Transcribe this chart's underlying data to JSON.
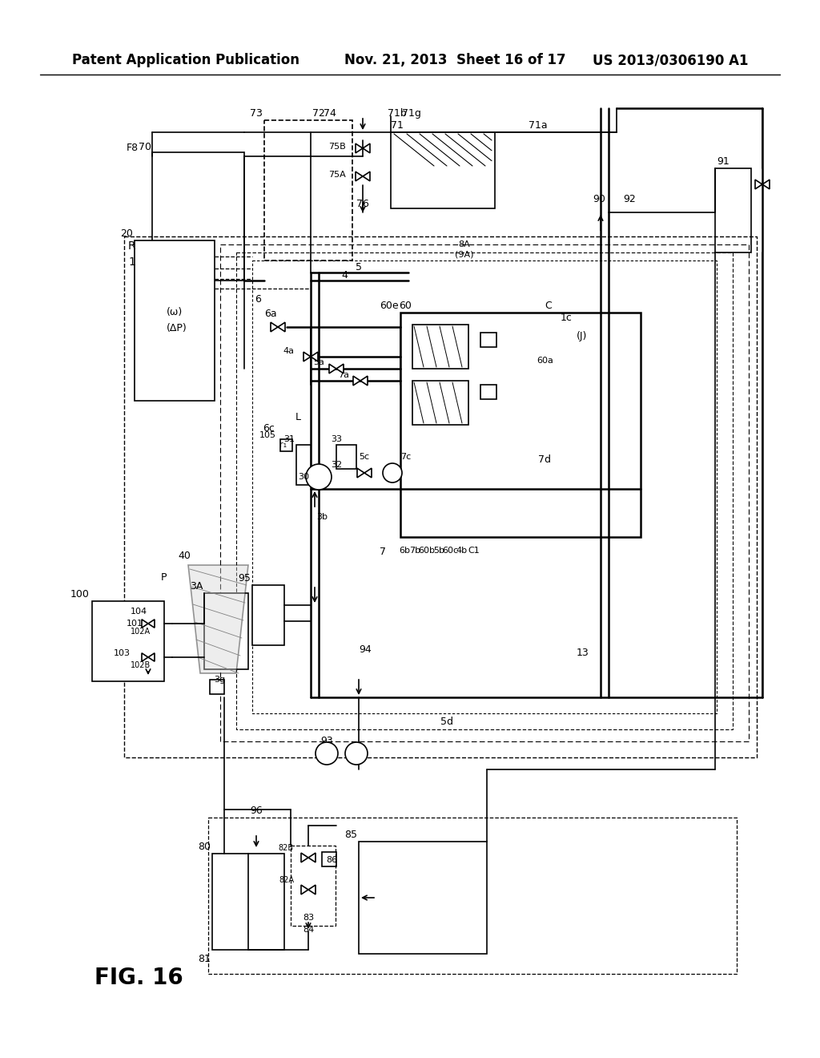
{
  "header_left": "Patent Application Publication",
  "header_center": "Nov. 21, 2013  Sheet 16 of 17",
  "header_right": "US 2013/0306190 A1",
  "figure_label": "FIG. 16",
  "background_color": "#ffffff",
  "line_color": "#000000"
}
